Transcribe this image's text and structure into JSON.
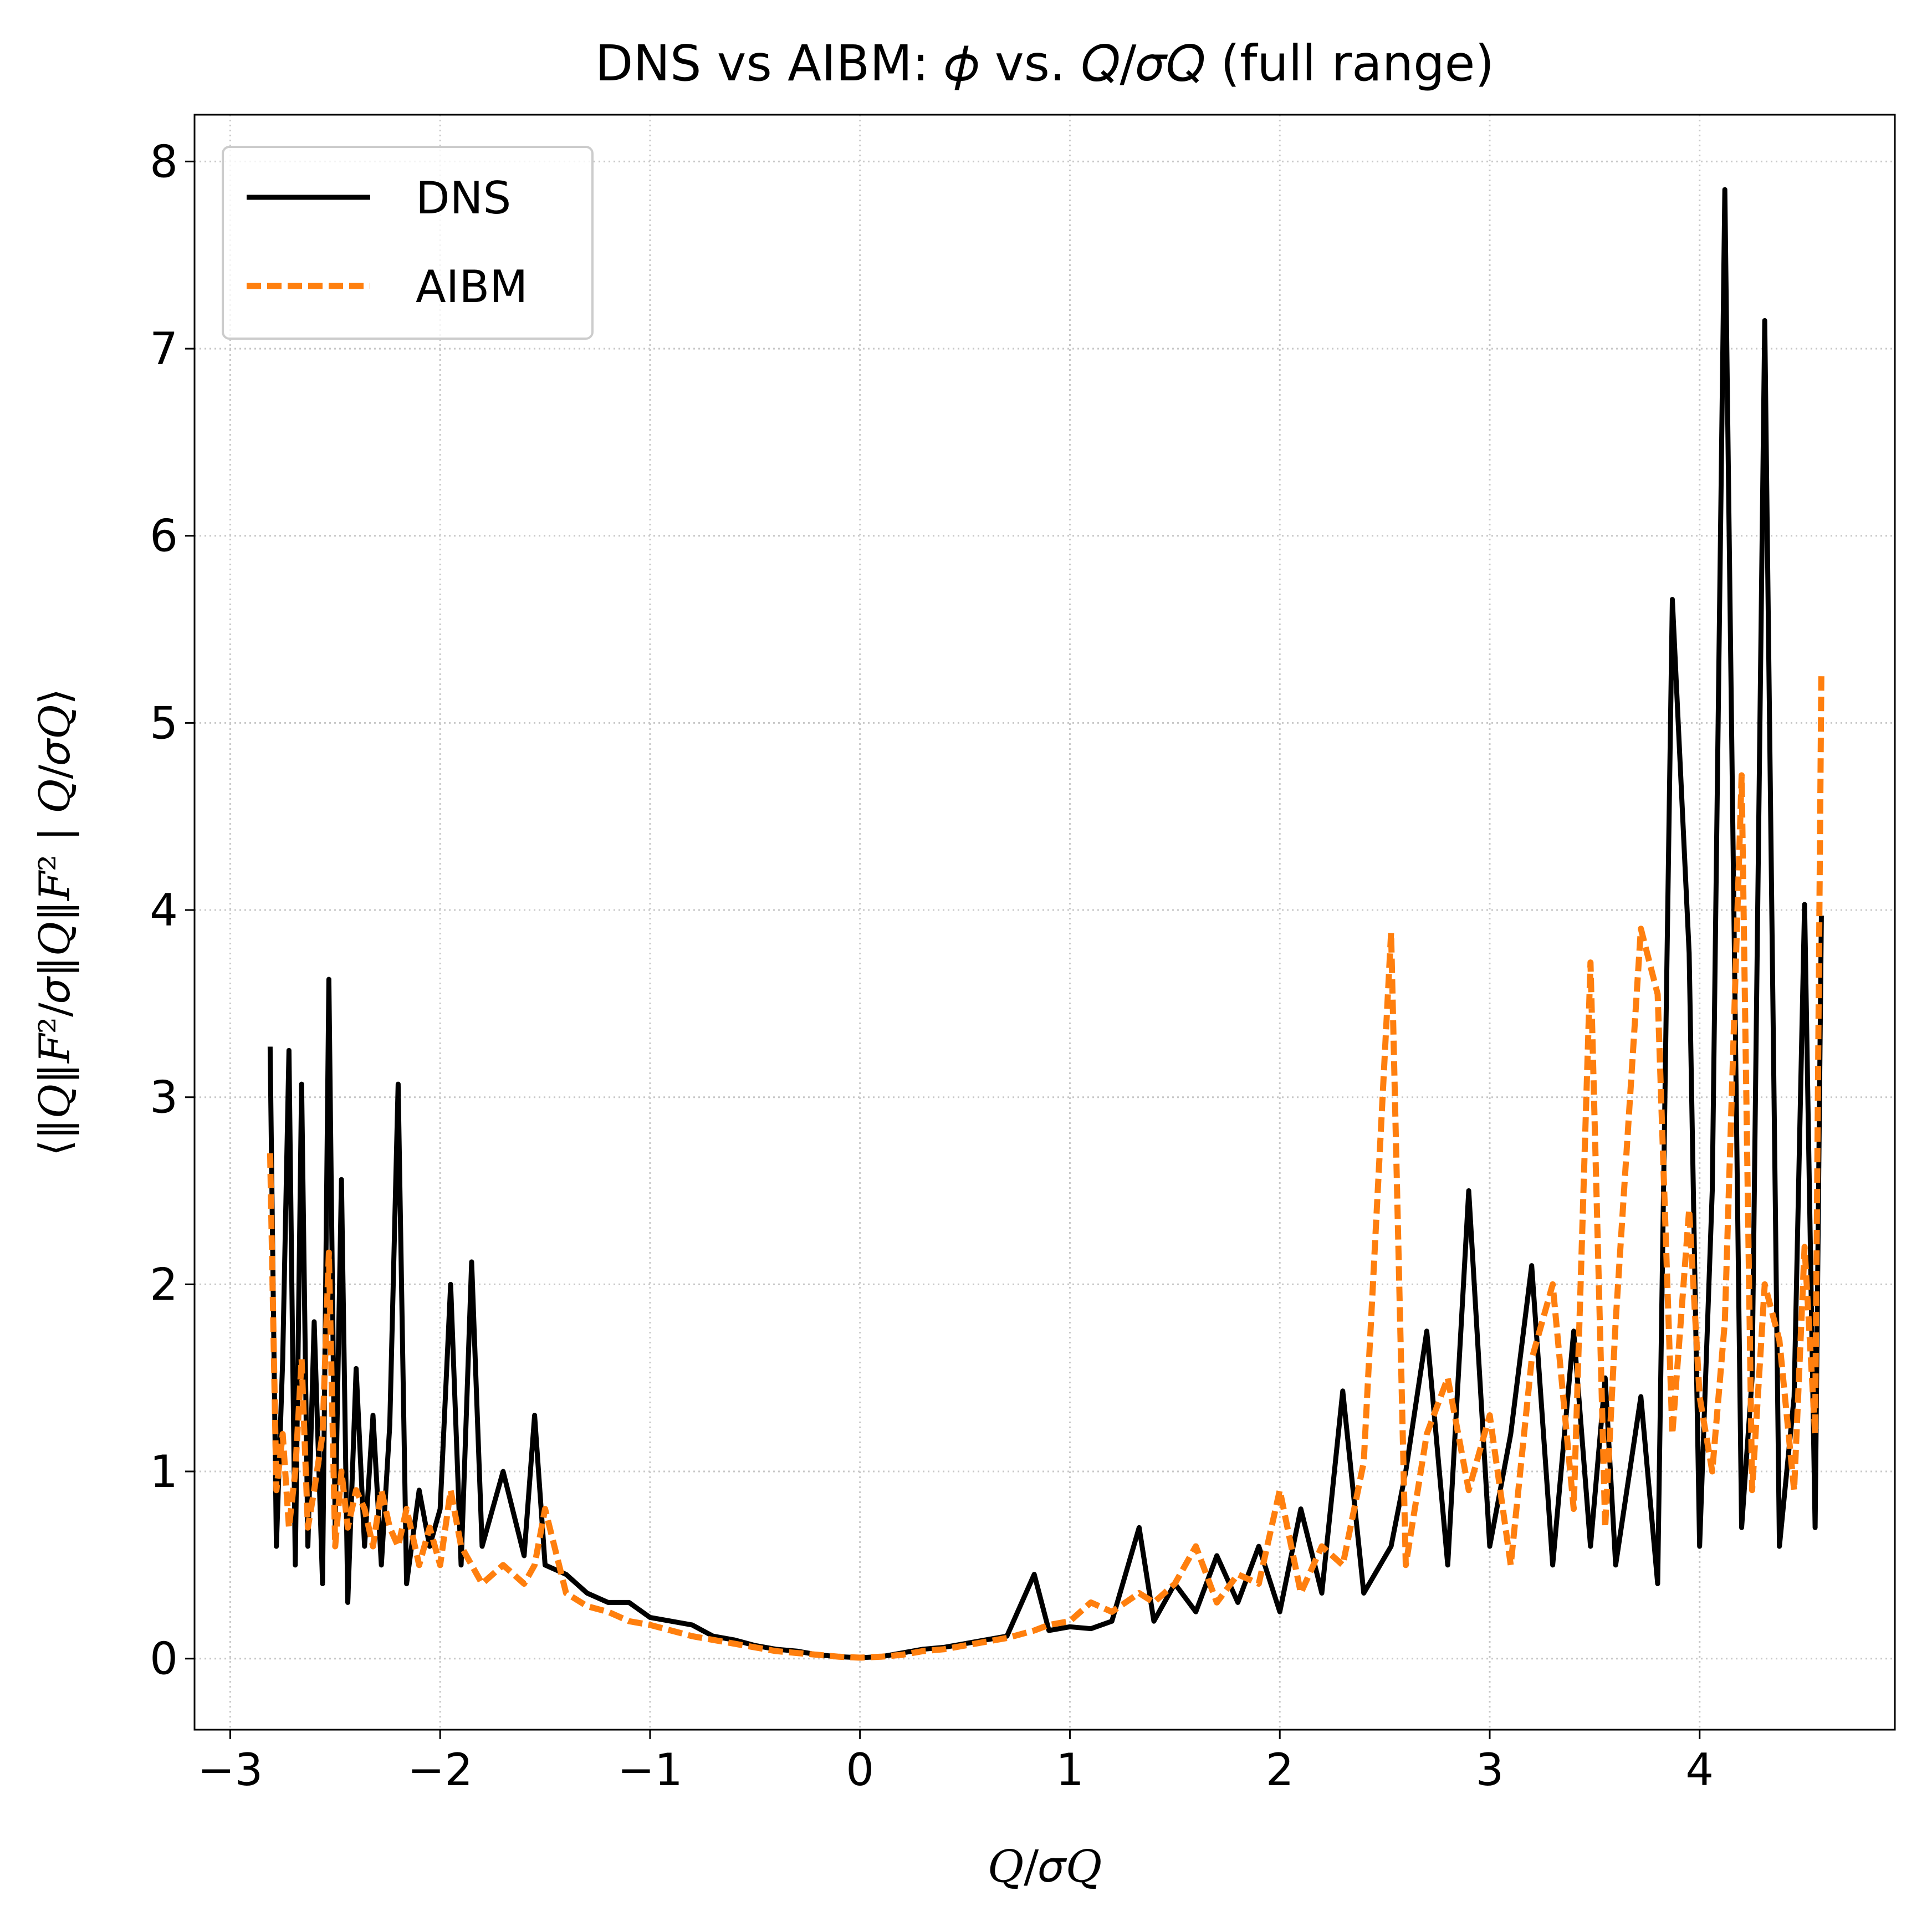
{
  "chart_data": {
    "type": "line",
    "title": "DNS vs AIBM: 𝜙 vs. 𝑄/𝜎𝑄 (full range)",
    "x_label": "𝑄/𝜎𝑄",
    "y_label": "⟨‖𝑄‖𝐹²/𝜎‖𝑄‖𝐹² | 𝑄/𝜎𝑄⟩",
    "xlim": [
      -3.17,
      4.93
    ],
    "ylim": [
      -0.38,
      8.25
    ],
    "xticks": [
      {
        "value": -3,
        "label": "−3"
      },
      {
        "value": -2,
        "label": "−2"
      },
      {
        "value": -1,
        "label": "−1"
      },
      0,
      1,
      2,
      3,
      4
    ],
    "yticks": [
      0,
      1,
      2,
      3,
      4,
      5,
      6,
      7,
      8
    ],
    "grid": true,
    "legend": "upper left",
    "x": [
      -2.81,
      -2.78,
      -2.75,
      -2.72,
      -2.69,
      -2.66,
      -2.63,
      -2.6,
      -2.56,
      -2.53,
      -2.5,
      -2.47,
      -2.44,
      -2.4,
      -2.36,
      -2.32,
      -2.28,
      -2.24,
      -2.2,
      -2.16,
      -2.1,
      -2.05,
      -2.0,
      -1.95,
      -1.9,
      -1.85,
      -1.8,
      -1.7,
      -1.6,
      -1.55,
      -1.5,
      -1.4,
      -1.3,
      -1.2,
      -1.1,
      -1.0,
      -0.9,
      -0.8,
      -0.7,
      -0.6,
      -0.5,
      -0.4,
      -0.3,
      -0.2,
      -0.1,
      0,
      0.1,
      0.2,
      0.3,
      0.4,
      0.5,
      0.6,
      0.7,
      0.83,
      0.9,
      1.0,
      1.1,
      1.2,
      1.33,
      1.4,
      1.5,
      1.6,
      1.7,
      1.8,
      1.9,
      2.0,
      2.1,
      2.2,
      2.3,
      2.4,
      2.53,
      2.6,
      2.7,
      2.8,
      2.9,
      3.0,
      3.1,
      3.2,
      3.3,
      3.4,
      3.48,
      3.55,
      3.6,
      3.72,
      3.8,
      3.87,
      3.95,
      4.0,
      4.06,
      4.12,
      4.2,
      4.25,
      4.31,
      4.38,
      4.45,
      4.5,
      4.55,
      4.58
    ],
    "series": [
      {
        "name": "DNS",
        "color": "#000000",
        "dash": "solid",
        "values": [
          3.27,
          0.6,
          1.6,
          3.25,
          0.5,
          3.07,
          0.6,
          1.8,
          0.4,
          3.63,
          0.7,
          2.56,
          0.3,
          1.55,
          0.6,
          1.3,
          0.5,
          1.25,
          3.07,
          0.4,
          0.9,
          0.6,
          0.8,
          2.0,
          0.5,
          2.12,
          0.6,
          1.0,
          0.55,
          1.3,
          0.5,
          0.45,
          0.35,
          0.3,
          0.3,
          0.22,
          0.2,
          0.18,
          0.12,
          0.1,
          0.07,
          0.05,
          0.04,
          0.02,
          0.01,
          0.005,
          0.01,
          0.03,
          0.05,
          0.06,
          0.08,
          0.1,
          0.12,
          0.45,
          0.15,
          0.17,
          0.16,
          0.2,
          0.7,
          0.2,
          0.4,
          0.25,
          0.55,
          0.3,
          0.6,
          0.25,
          0.8,
          0.35,
          1.43,
          0.35,
          0.6,
          1.0,
          1.75,
          0.5,
          2.5,
          0.6,
          1.2,
          2.1,
          0.5,
          1.75,
          0.6,
          1.5,
          0.5,
          1.4,
          0.4,
          5.66,
          3.77,
          0.6,
          2.5,
          7.85,
          0.7,
          1.5,
          7.15,
          0.6,
          1.4,
          4.03,
          0.7,
          3.97
        ]
      },
      {
        "name": "AIBM",
        "color": "#ff7f0e",
        "dash": "dashed",
        "values": [
          2.7,
          0.9,
          1.2,
          0.7,
          1.0,
          1.6,
          0.7,
          0.9,
          1.2,
          2.17,
          0.6,
          1.0,
          0.7,
          0.9,
          0.8,
          0.6,
          0.9,
          0.7,
          0.6,
          0.8,
          0.5,
          0.7,
          0.5,
          0.9,
          0.6,
          0.5,
          0.4,
          0.5,
          0.4,
          0.5,
          0.8,
          0.35,
          0.28,
          0.25,
          0.2,
          0.18,
          0.15,
          0.12,
          0.1,
          0.08,
          0.06,
          0.04,
          0.03,
          0.02,
          0.01,
          0.005,
          0.01,
          0.02,
          0.04,
          0.05,
          0.07,
          0.09,
          0.11,
          0.15,
          0.18,
          0.2,
          0.3,
          0.25,
          0.35,
          0.3,
          0.4,
          0.6,
          0.3,
          0.45,
          0.4,
          0.9,
          0.35,
          0.6,
          0.5,
          1.05,
          3.88,
          0.5,
          1.2,
          1.5,
          0.9,
          1.3,
          0.5,
          1.6,
          2.0,
          0.8,
          3.72,
          0.7,
          1.8,
          3.9,
          3.55,
          1.2,
          2.4,
          1.4,
          1.0,
          1.8,
          4.72,
          0.9,
          2.0,
          1.7,
          0.9,
          2.2,
          1.2,
          5.28
        ]
      }
    ]
  }
}
